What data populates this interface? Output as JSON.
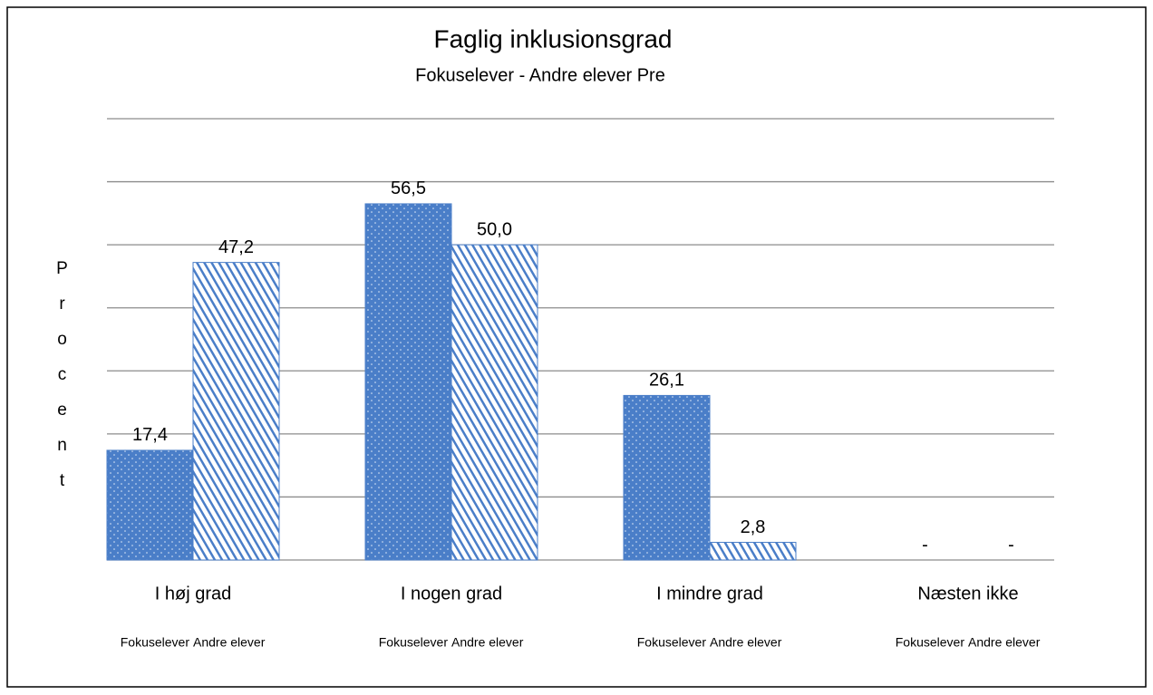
{
  "chart_data": {
    "type": "bar",
    "title": "Faglig inklusionsgrad",
    "subtitle": "Fokuselever - Andre elever Pre",
    "y_label": "Procent",
    "categories": [
      "I høj grad",
      "I nogen grad",
      "I mindre grad",
      "Næsten ikke"
    ],
    "series": [
      {
        "name": "Fokuselever",
        "color": "#4a7ec8",
        "pattern": "dots",
        "values": [
          17.4,
          56.5,
          26.1,
          0
        ],
        "value_labels": [
          "17,4",
          "56,5",
          "26,1",
          "-"
        ]
      },
      {
        "name": "Andre elever",
        "color": "#4a7ec8",
        "pattern": "hatch",
        "values": [
          47.2,
          50.0,
          2.8,
          0
        ],
        "value_labels": [
          "47,2",
          "50,0",
          "2,8",
          "-"
        ]
      }
    ],
    "ylim": [
      0,
      70
    ],
    "yticks": [
      0,
      10,
      20,
      30,
      40,
      50,
      60,
      70
    ],
    "grid": true
  }
}
